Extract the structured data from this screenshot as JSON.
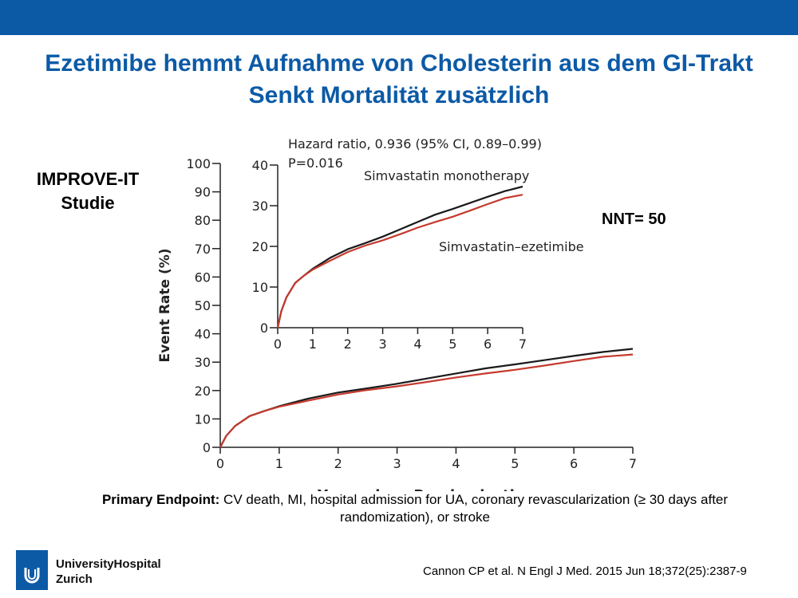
{
  "slide": {
    "title_line1": "Ezetimibe hemmt Aufnahme von Cholesterin aus dem GI-Trakt",
    "title_line2": "Senkt Mortalität zusätzlich",
    "study_line1": "IMPROVE-IT",
    "study_line2": "Studie",
    "nnt": "NNT= 50",
    "endpoint_bold": "Primary Endpoint:",
    "endpoint_line1": "CV death, MI, hospital admission for UA, coronary revascularization (≥ 30 days after",
    "endpoint_line2": "randomization), or stroke",
    "logo_line1": "UniversityHospital",
    "logo_line2": "Zurich",
    "citation": "Cannon CP et al. N Engl J Med. 2015 Jun 18;372(25):2387-9",
    "colors": {
      "brand_blue": "#0c5aa6",
      "series_black": "#1a1a1a",
      "series_red": "#c43a2e"
    }
  },
  "chart_data": [
    {
      "type": "line",
      "xlabel": "Years since Randomization",
      "ylabel": "Event Rate (%)",
      "xlim": [
        0,
        7
      ],
      "ylim": [
        0,
        100
      ],
      "x_ticks": [
        "0",
        "1",
        "2",
        "3",
        "4",
        "5",
        "6",
        "7"
      ],
      "y_ticks": [
        "0",
        "10",
        "20",
        "30",
        "40",
        "50",
        "60",
        "70",
        "80",
        "90",
        "100"
      ],
      "series": [
        {
          "color": "#1a1a1a",
          "x": [
            0,
            0.1,
            0.25,
            0.5,
            0.75,
            1,
            1.5,
            2,
            2.5,
            3,
            3.5,
            4,
            4.5,
            5,
            5.5,
            6,
            6.5,
            7
          ],
          "y": [
            0,
            4,
            7.5,
            11,
            12.8,
            14.5,
            17.2,
            19.3,
            20.8,
            22.4,
            24.2,
            26,
            27.8,
            29.2,
            30.7,
            32.2,
            33.6,
            34.7
          ]
        },
        {
          "color": "#c43a2e",
          "x": [
            0,
            0.1,
            0.25,
            0.5,
            0.75,
            1,
            1.5,
            2,
            2.5,
            3,
            3.5,
            4,
            4.5,
            5,
            5.5,
            6,
            6.5,
            7
          ],
          "y": [
            0,
            4,
            7.5,
            11,
            12.8,
            14.3,
            16.5,
            18.6,
            20.2,
            21.5,
            23,
            24.6,
            26,
            27.3,
            28.8,
            30.4,
            31.9,
            32.7
          ]
        }
      ]
    },
    {
      "type": "line",
      "annotation_hr": "Hazard ratio, 0.936 (95% CI, 0.89–0.99)",
      "annotation_p": "P=0.016",
      "xlim": [
        0,
        7
      ],
      "ylim": [
        0,
        40
      ],
      "x_ticks": [
        "0",
        "1",
        "2",
        "3",
        "4",
        "5",
        "6",
        "7"
      ],
      "y_ticks": [
        "0",
        "10",
        "20",
        "30",
        "40"
      ],
      "series": [
        {
          "name": "Simvastatin monotherapy",
          "color": "#1a1a1a",
          "x": [
            0,
            0.1,
            0.25,
            0.5,
            0.75,
            1,
            1.5,
            2,
            2.5,
            3,
            3.5,
            4,
            4.5,
            5,
            5.5,
            6,
            6.5,
            7
          ],
          "y": [
            0,
            4,
            7.5,
            11,
            12.8,
            14.5,
            17.2,
            19.3,
            20.8,
            22.4,
            24.2,
            26,
            27.8,
            29.2,
            30.7,
            32.2,
            33.6,
            34.7
          ]
        },
        {
          "name": "Simvastatin–ezetimibe",
          "color": "#c43a2e",
          "x": [
            0,
            0.1,
            0.25,
            0.5,
            0.75,
            1,
            1.5,
            2,
            2.5,
            3,
            3.5,
            4,
            4.5,
            5,
            5.5,
            6,
            6.5,
            7
          ],
          "y": [
            0,
            4,
            7.5,
            11,
            12.8,
            14.3,
            16.5,
            18.6,
            20.2,
            21.5,
            23,
            24.6,
            26,
            27.3,
            28.8,
            30.4,
            31.9,
            32.7
          ]
        }
      ]
    }
  ]
}
